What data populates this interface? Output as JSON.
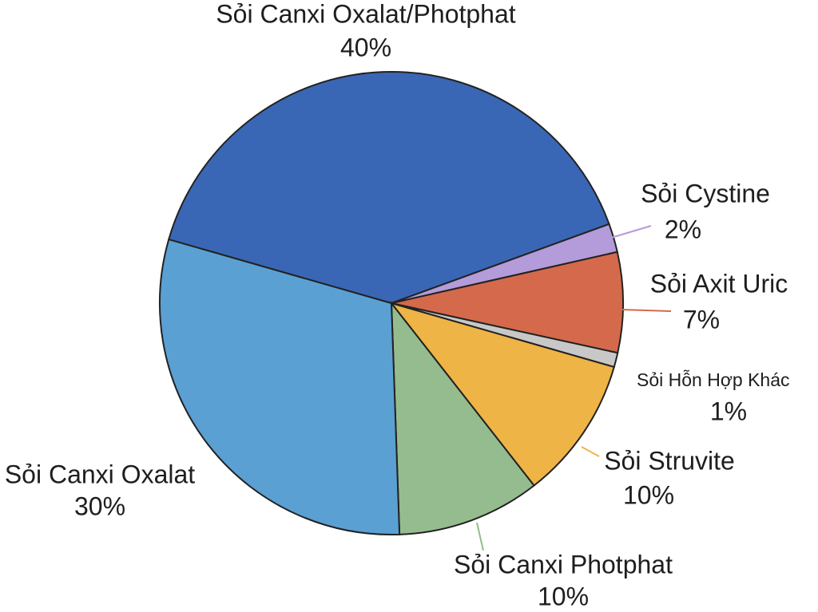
{
  "chart_data": {
    "type": "pie",
    "categories": [
      "Sỏi Canxi Oxalat/Photphat",
      "Sỏi Cystine",
      "Sỏi Axit Uric",
      "Sỏi Hỗn Hợp Khác",
      "Sỏi Struvite",
      "Sỏi Canxi Photphat",
      "Sỏi Canxi Oxalat"
    ],
    "values": [
      40,
      2,
      7,
      1,
      10,
      10,
      30
    ],
    "value_labels": [
      "40%",
      "2%",
      "7%",
      "1%",
      "10%",
      "10%",
      "30%"
    ],
    "colors": [
      "#3a67b5",
      "#b49bd9",
      "#d46a4b",
      "#c8c8c8",
      "#efb446",
      "#95bc8e",
      "#5aa0d3"
    ]
  }
}
